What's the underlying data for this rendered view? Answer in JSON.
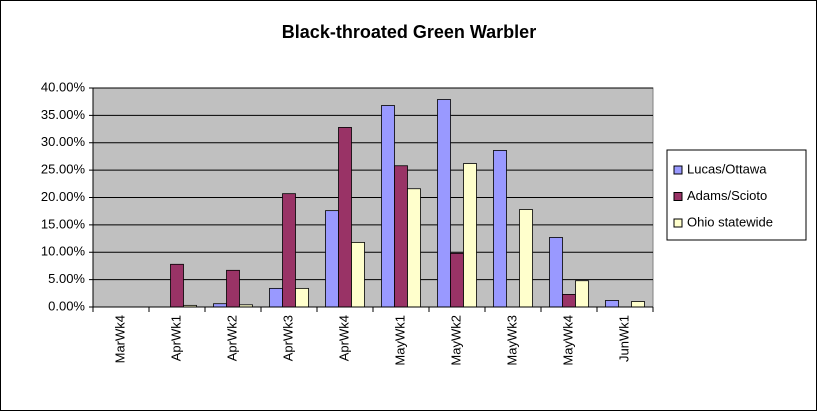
{
  "chart_data": {
    "type": "bar",
    "title": "Black-throated Green Warbler",
    "categories": [
      "MarWk4",
      "AprWk1",
      "AprWk2",
      "AprWk3",
      "AprWk4",
      "MayWk1",
      "MayWk2",
      "MayWk3",
      "MayWk4",
      "JunWk1"
    ],
    "series": [
      {
        "name": "Lucas/Ottawa",
        "color": "#9999ff",
        "values": [
          0,
          0,
          0.6,
          3.4,
          17.6,
          36.8,
          37.9,
          28.6,
          12.7,
          1.2
        ]
      },
      {
        "name": "Adams/Scioto",
        "color": "#993366",
        "values": [
          0,
          7.8,
          6.7,
          20.7,
          32.8,
          25.8,
          9.8,
          0,
          2.3,
          0
        ]
      },
      {
        "name": "Ohio statewide",
        "color": "#ffffcc",
        "values": [
          0,
          0.3,
          0.4,
          3.4,
          11.8,
          21.6,
          26.2,
          17.8,
          4.8,
          1.0
        ]
      }
    ],
    "ylim": [
      0,
      40
    ],
    "yticks": [
      {
        "value": 0,
        "label": "0.00%"
      },
      {
        "value": 5,
        "label": "5.00%"
      },
      {
        "value": 10,
        "label": "10.00%"
      },
      {
        "value": 15,
        "label": "15.00%"
      },
      {
        "value": 20,
        "label": "20.00%"
      },
      {
        "value": 25,
        "label": "25.00%"
      },
      {
        "value": 30,
        "label": "30.00%"
      },
      {
        "value": 35,
        "label": "35.00%"
      },
      {
        "value": 40,
        "label": "40.00%"
      }
    ],
    "grid": true,
    "legend": "right"
  }
}
